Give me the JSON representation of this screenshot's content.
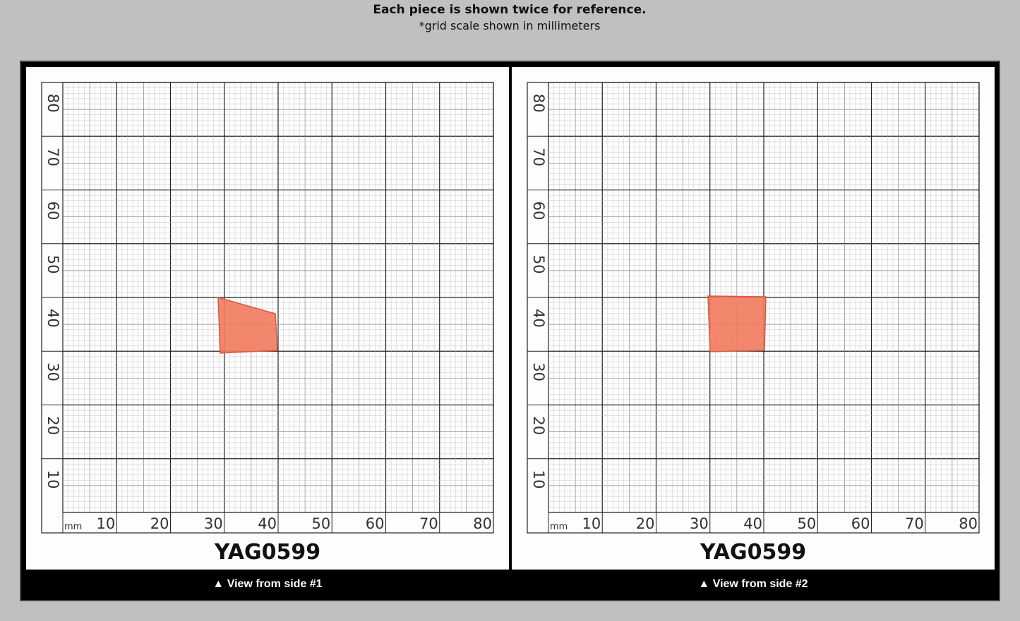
{
  "header": {
    "title": "Each piece is shown twice for reference.",
    "subtitle": "*grid scale shown in millimeters"
  },
  "panels": [
    {
      "y_labels": [
        "80",
        "70",
        "60",
        "50",
        "40",
        "30",
        "20",
        "10"
      ],
      "unit": "mm",
      "x_labels": [
        "10",
        "20",
        "30",
        "40",
        "50",
        "60",
        "70",
        "80"
      ],
      "sample_id": "YAG0599",
      "caption": "▲ View from side #1"
    },
    {
      "y_labels": [
        "80",
        "70",
        "60",
        "50",
        "40",
        "30",
        "20",
        "10"
      ],
      "unit": "mm",
      "x_labels": [
        "10",
        "20",
        "30",
        "40",
        "50",
        "60",
        "70",
        "80"
      ],
      "sample_id": "YAG0599",
      "caption": "▲ View from side #2"
    }
  ]
}
